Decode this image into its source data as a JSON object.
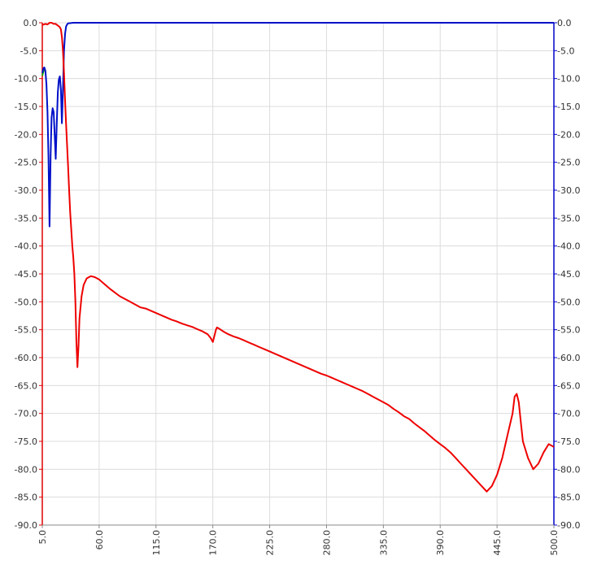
{
  "chart_data": {
    "type": "line",
    "title": "",
    "xlabel": "",
    "ylabel": "",
    "xlim": [
      5,
      500
    ],
    "ylim": [
      -90,
      0
    ],
    "x_ticks": [
      "5.0",
      "60.0",
      "115.0",
      "170.0",
      "225.0",
      "280.0",
      "335.0",
      "390.0",
      "445.0",
      "500.0"
    ],
    "y_ticks_left": [
      "0.0",
      "-5.0",
      "-10.0",
      "-15.0",
      "-20.0",
      "-25.0",
      "-30.0",
      "-35.0",
      "-40.0",
      "-45.0",
      "-50.0",
      "-55.0",
      "-60.0",
      "-65.0",
      "-70.0",
      "-75.0",
      "-80.0",
      "-85.0",
      "-90.0"
    ],
    "y_ticks_right": [
      "0.0",
      "-5.0",
      "-10.0",
      "-15.0",
      "-20.0",
      "-25.0",
      "-30.0",
      "-35.0",
      "-40.0",
      "-45.0",
      "-50.0",
      "-55.0",
      "-60.0",
      "-65.0",
      "-70.0",
      "-75.0",
      "-80.0",
      "-85.0",
      "-90.0"
    ],
    "grid": true,
    "left_axis_color": "#e00000",
    "right_axis_color": "#0000cc",
    "series": [
      {
        "color": "#00aa00",
        "values": [
          [
            5,
            -9.5
          ],
          [
            6,
            -8.8
          ],
          [
            7,
            -8.3
          ]
        ]
      },
      {
        "color": "#0010c8",
        "values": [
          [
            5,
            -9.0
          ],
          [
            6,
            -8.2
          ],
          [
            7,
            -8.0
          ],
          [
            8,
            -8.6
          ],
          [
            9,
            -11.0
          ],
          [
            10,
            -16.0
          ],
          [
            11,
            -24.0
          ],
          [
            12,
            -36.5
          ],
          [
            13,
            -24.0
          ],
          [
            14,
            -17.0
          ],
          [
            15,
            -15.3
          ],
          [
            16,
            -16.0
          ],
          [
            17,
            -20.0
          ],
          [
            18,
            -24.4
          ],
          [
            19,
            -18.0
          ],
          [
            20,
            -12.5
          ],
          [
            21,
            -10.2
          ],
          [
            22,
            -9.6
          ],
          [
            23,
            -12.0
          ],
          [
            24,
            -18.0
          ],
          [
            25,
            -12.0
          ],
          [
            26,
            -5.0
          ],
          [
            27,
            -2.0
          ],
          [
            28,
            -0.7
          ],
          [
            29,
            -0.3
          ],
          [
            30,
            -0.1
          ],
          [
            35,
            0
          ],
          [
            60,
            0
          ],
          [
            115,
            0
          ],
          [
            170,
            0
          ],
          [
            225,
            0
          ],
          [
            280,
            0
          ],
          [
            335,
            0
          ],
          [
            390,
            0
          ],
          [
            445,
            0
          ],
          [
            500,
            0
          ]
        ]
      },
      {
        "color": "#ee0000",
        "values": [
          [
            5,
            -0.4
          ],
          [
            8,
            -0.2
          ],
          [
            10,
            -0.3
          ],
          [
            12,
            0
          ],
          [
            14,
            0
          ],
          [
            16,
            -0.2
          ],
          [
            18,
            -0.2
          ],
          [
            20,
            -0.5
          ],
          [
            22,
            -0.8
          ],
          [
            23,
            -1.2
          ],
          [
            24,
            -2.5
          ],
          [
            25,
            -5.0
          ],
          [
            26,
            -9.0
          ],
          [
            27,
            -14.0
          ],
          [
            28,
            -18.0
          ],
          [
            29,
            -22.0
          ],
          [
            30,
            -26.0
          ],
          [
            31,
            -30.0
          ],
          [
            32,
            -34.0
          ],
          [
            33,
            -37.0
          ],
          [
            34,
            -40.0
          ],
          [
            35,
            -42.0
          ],
          [
            36,
            -45.0
          ],
          [
            37,
            -50.0
          ],
          [
            38,
            -57.0
          ],
          [
            39,
            -61.7
          ],
          [
            40,
            -58.0
          ],
          [
            41,
            -53.0
          ],
          [
            43,
            -49.0
          ],
          [
            45,
            -47.0
          ],
          [
            48,
            -45.8
          ],
          [
            52,
            -45.4
          ],
          [
            56,
            -45.6
          ],
          [
            60,
            -46.0
          ],
          [
            65,
            -46.8
          ],
          [
            70,
            -47.6
          ],
          [
            75,
            -48.3
          ],
          [
            80,
            -49.0
          ],
          [
            85,
            -49.5
          ],
          [
            90,
            -50.0
          ],
          [
            95,
            -50.5
          ],
          [
            100,
            -51.0
          ],
          [
            105,
            -51.2
          ],
          [
            110,
            -51.6
          ],
          [
            115,
            -52.0
          ],
          [
            120,
            -52.4
          ],
          [
            125,
            -52.8
          ],
          [
            130,
            -53.2
          ],
          [
            135,
            -53.5
          ],
          [
            140,
            -53.9
          ],
          [
            145,
            -54.2
          ],
          [
            150,
            -54.5
          ],
          [
            155,
            -54.9
          ],
          [
            160,
            -55.3
          ],
          [
            165,
            -55.8
          ],
          [
            168,
            -56.5
          ],
          [
            170,
            -57.2
          ],
          [
            171,
            -56.5
          ],
          [
            173,
            -55.0
          ],
          [
            174,
            -54.6
          ],
          [
            176,
            -54.8
          ],
          [
            180,
            -55.3
          ],
          [
            185,
            -55.8
          ],
          [
            190,
            -56.2
          ],
          [
            195,
            -56.5
          ],
          [
            200,
            -56.9
          ],
          [
            205,
            -57.3
          ],
          [
            210,
            -57.7
          ],
          [
            215,
            -58.1
          ],
          [
            220,
            -58.5
          ],
          [
            225,
            -58.9
          ],
          [
            230,
            -59.3
          ],
          [
            235,
            -59.7
          ],
          [
            240,
            -60.1
          ],
          [
            245,
            -60.5
          ],
          [
            250,
            -60.9
          ],
          [
            255,
            -61.3
          ],
          [
            260,
            -61.7
          ],
          [
            265,
            -62.1
          ],
          [
            270,
            -62.5
          ],
          [
            275,
            -62.9
          ],
          [
            280,
            -63.2
          ],
          [
            285,
            -63.6
          ],
          [
            290,
            -64.0
          ],
          [
            295,
            -64.4
          ],
          [
            300,
            -64.8
          ],
          [
            305,
            -65.2
          ],
          [
            310,
            -65.6
          ],
          [
            315,
            -66.0
          ],
          [
            320,
            -66.5
          ],
          [
            325,
            -67.0
          ],
          [
            330,
            -67.5
          ],
          [
            335,
            -68.0
          ],
          [
            340,
            -68.5
          ],
          [
            345,
            -69.2
          ],
          [
            350,
            -69.8
          ],
          [
            355,
            -70.5
          ],
          [
            360,
            -71.0
          ],
          [
            365,
            -71.8
          ],
          [
            370,
            -72.5
          ],
          [
            375,
            -73.2
          ],
          [
            380,
            -74.0
          ],
          [
            385,
            -74.8
          ],
          [
            390,
            -75.5
          ],
          [
            395,
            -76.2
          ],
          [
            400,
            -77.0
          ],
          [
            405,
            -78.0
          ],
          [
            410,
            -79.0
          ],
          [
            415,
            -80.0
          ],
          [
            420,
            -81.0
          ],
          [
            425,
            -82.0
          ],
          [
            430,
            -83.0
          ],
          [
            435,
            -84.0
          ],
          [
            440,
            -83.0
          ],
          [
            445,
            -81.0
          ],
          [
            450,
            -78.0
          ],
          [
            455,
            -74.0
          ],
          [
            460,
            -70.0
          ],
          [
            462,
            -67.0
          ],
          [
            464,
            -66.5
          ],
          [
            466,
            -68.0
          ],
          [
            468,
            -71.5
          ],
          [
            470,
            -75.0
          ],
          [
            475,
            -78.0
          ],
          [
            480,
            -80.0
          ],
          [
            485,
            -79.0
          ],
          [
            490,
            -77.0
          ],
          [
            495,
            -75.5
          ],
          [
            500,
            -76.0
          ]
        ]
      }
    ]
  }
}
